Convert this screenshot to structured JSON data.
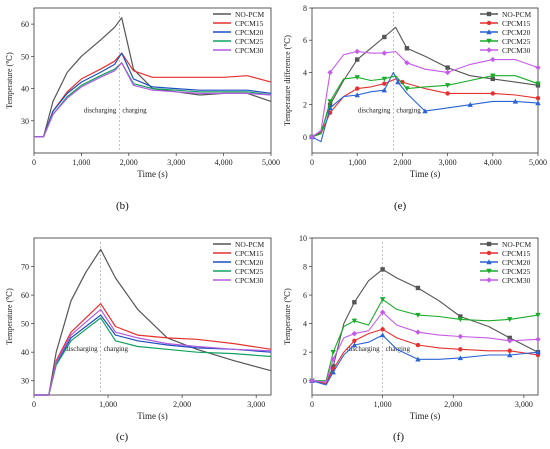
{
  "figure": {
    "panel_labels": [
      "(b)",
      "(e)",
      "(c)",
      "(f)"
    ],
    "annotations": {
      "left": "discharging",
      "right": "charging"
    }
  },
  "colors": {
    "NO-PCM": "#555555",
    "CPCM15": "#e5312f",
    "CPCM20": "#1f4fbf",
    "CPCM25": "#10a060",
    "CPCM30": "#b05be0",
    "e_CPCM20": "#2a63d6",
    "e_CPCM25": "#1aab2a",
    "e_CPCM30": "#c55be8",
    "f_CPCM20": "#2a63d6",
    "f_CPCM25": "#1aab2a",
    "f_CPCM30": "#c55be8"
  },
  "chart_data": [
    {
      "id": "b",
      "type": "line",
      "xlabel": "Time (s)",
      "ylabel": "Temperature (℃)",
      "xlim": [
        0,
        5000
      ],
      "ylim": [
        20,
        65
      ],
      "xticks": [
        0,
        1000,
        2000,
        3000,
        4000,
        5000
      ],
      "xticklabels": [
        "0",
        "1,000",
        "2,000",
        "3,000",
        "4,000",
        "5,000"
      ],
      "yticks": [
        30,
        40,
        50,
        60
      ],
      "yticklabels": [
        "30",
        "40",
        "50",
        "60"
      ],
      "divider_x": 1800,
      "legend": "top-right",
      "series": [
        {
          "name": "NO-PCM",
          "x": [
            0,
            200,
            400,
            700,
            1000,
            1400,
            1700,
            1850,
            2100,
            2500,
            3000,
            3500,
            4000,
            4500,
            5000
          ],
          "values": [
            25,
            25,
            36,
            45,
            50,
            55,
            59,
            62,
            46,
            40,
            39,
            38,
            38.5,
            38.5,
            36
          ]
        },
        {
          "name": "CPCM15",
          "x": [
            0,
            200,
            400,
            700,
            1000,
            1400,
            1700,
            1850,
            2100,
            2500,
            3000,
            3500,
            4000,
            4500,
            5000
          ],
          "values": [
            25,
            25,
            33,
            39,
            43,
            46,
            48.5,
            51,
            45.5,
            43.5,
            43.5,
            43.5,
            43.5,
            44,
            42
          ]
        },
        {
          "name": "CPCM20",
          "x": [
            0,
            200,
            400,
            700,
            1000,
            1400,
            1700,
            1850,
            2100,
            2500,
            3000,
            3500,
            4000,
            4500,
            5000
          ],
          "values": [
            25,
            25,
            33,
            38.5,
            42,
            45,
            47.5,
            51,
            43,
            40.5,
            40,
            39.5,
            39.5,
            39.5,
            38.5
          ]
        },
        {
          "name": "CPCM25",
          "x": [
            0,
            200,
            400,
            700,
            1000,
            1400,
            1700,
            1850,
            2100,
            2500,
            3000,
            3500,
            4000,
            4500,
            5000
          ],
          "values": [
            25,
            25,
            32,
            37.5,
            41,
            44,
            46,
            48,
            41.5,
            40,
            39.5,
            39,
            39,
            39,
            38
          ]
        },
        {
          "name": "CPCM30",
          "x": [
            0,
            200,
            400,
            700,
            1000,
            1400,
            1700,
            1850,
            2100,
            2500,
            3000,
            3500,
            4000,
            4500,
            5000
          ],
          "values": [
            25,
            25,
            32,
            37,
            40.5,
            43.5,
            45.5,
            48,
            41,
            39.5,
            39,
            38.5,
            38.5,
            38.5,
            38
          ]
        }
      ]
    },
    {
      "id": "e",
      "type": "line",
      "xlabel": "Time (s)",
      "ylabel": "Temperature difference (℃)",
      "xlim": [
        0,
        5000
      ],
      "ylim": [
        -1,
        8
      ],
      "xticks": [
        0,
        1000,
        2000,
        3000,
        4000,
        5000
      ],
      "xticklabels": [
        "0",
        "1,000",
        "2,000",
        "3,000",
        "4,000",
        "5,000"
      ],
      "yticks": [
        0,
        2,
        4,
        6,
        8
      ],
      "yticklabels": [
        "0",
        "2",
        "4",
        "6",
        "8"
      ],
      "divider_x": 1800,
      "legend": "top-right",
      "series": [
        {
          "name": "NO-PCM",
          "x": [
            0,
            200,
            400,
            700,
            1000,
            1300,
            1600,
            1850,
            2100,
            2500,
            3000,
            3500,
            4000,
            4500,
            5000
          ],
          "values": [
            0,
            0.3,
            2.0,
            3.5,
            4.8,
            5.5,
            6.2,
            6.8,
            5.5,
            5.0,
            4.3,
            3.8,
            3.6,
            3.4,
            3.2
          ]
        },
        {
          "name": "CPCM15",
          "x": [
            0,
            200,
            400,
            700,
            1000,
            1300,
            1600,
            1850,
            2000,
            2500,
            3000,
            3500,
            4000,
            4500,
            5000
          ],
          "values": [
            0,
            0.2,
            1.5,
            2.5,
            3.0,
            3.1,
            3.3,
            3.6,
            3.4,
            3.0,
            2.7,
            2.7,
            2.7,
            2.6,
            2.4
          ]
        },
        {
          "name": "CPCM20",
          "x": [
            0,
            200,
            400,
            700,
            1000,
            1300,
            1600,
            1800,
            1900,
            2100,
            2500,
            3000,
            3500,
            4000,
            4500,
            5000
          ],
          "values": [
            0,
            -0.3,
            1.8,
            2.5,
            2.6,
            2.8,
            2.9,
            4.0,
            3.4,
            2.7,
            1.6,
            1.8,
            2.0,
            2.2,
            2.2,
            2.1
          ]
        },
        {
          "name": "CPCM25",
          "x": [
            0,
            200,
            400,
            700,
            1000,
            1300,
            1600,
            1850,
            2100,
            2500,
            3000,
            3500,
            4000,
            4500,
            5000
          ],
          "values": [
            0,
            0.2,
            2.2,
            3.6,
            3.7,
            3.5,
            3.6,
            3.8,
            3.0,
            3.1,
            3.2,
            3.5,
            3.8,
            3.8,
            3.3
          ]
        },
        {
          "name": "CPCM30",
          "x": [
            0,
            200,
            400,
            700,
            1000,
            1300,
            1600,
            1850,
            2100,
            2500,
            3000,
            3500,
            4000,
            4500,
            5000
          ],
          "values": [
            0,
            0.4,
            4.0,
            5.1,
            5.3,
            5.2,
            5.2,
            5.3,
            4.6,
            4.2,
            4.0,
            4.5,
            4.8,
            4.8,
            4.3
          ]
        }
      ]
    },
    {
      "id": "c",
      "type": "line",
      "xlabel": "Time (s)",
      "ylabel": "Temperature (℃)",
      "xlim": [
        0,
        3200
      ],
      "ylim": [
        25,
        80
      ],
      "xticks": [
        0,
        1000,
        2000,
        3000
      ],
      "xticklabels": [
        "0",
        "1,000",
        "2,000",
        "3,000"
      ],
      "yticks": [
        30,
        40,
        50,
        60,
        70
      ],
      "yticklabels": [
        "30",
        "40",
        "50",
        "60",
        "70"
      ],
      "divider_x": 900,
      "legend": "top-right",
      "series": [
        {
          "name": "NO-PCM",
          "x": [
            0,
            200,
            300,
            500,
            700,
            900,
            1100,
            1400,
            1800,
            2200,
            2700,
            3200
          ],
          "values": [
            25,
            25,
            40,
            58,
            68,
            76,
            66,
            55,
            45,
            41,
            37,
            33.5
          ]
        },
        {
          "name": "CPCM15",
          "x": [
            0,
            200,
            300,
            500,
            700,
            900,
            1100,
            1400,
            1800,
            2200,
            2700,
            3200
          ],
          "values": [
            25,
            25,
            37,
            47,
            52,
            57,
            49,
            46,
            45,
            44.5,
            43,
            41
          ]
        },
        {
          "name": "CPCM20",
          "x": [
            0,
            200,
            300,
            500,
            700,
            900,
            1100,
            1400,
            1800,
            2200,
            2700,
            3200
          ],
          "values": [
            25,
            25,
            36,
            45,
            49,
            53,
            46,
            44,
            42.5,
            41.5,
            41,
            40
          ]
        },
        {
          "name": "CPCM25",
          "x": [
            0,
            200,
            300,
            500,
            700,
            900,
            1100,
            1400,
            1800,
            2200,
            2700,
            3200
          ],
          "values": [
            25,
            25,
            35.5,
            44,
            48,
            52,
            44,
            42,
            41,
            40,
            39.5,
            38.5
          ]
        },
        {
          "name": "CPCM30",
          "x": [
            0,
            200,
            300,
            500,
            700,
            900,
            1100,
            1400,
            1800,
            2200,
            2700,
            3200
          ],
          "values": [
            25,
            25,
            36.5,
            46,
            50.5,
            55,
            47,
            45,
            43,
            42,
            41,
            40.5
          ]
        }
      ]
    },
    {
      "id": "f",
      "type": "line",
      "xlabel": "Time (s)",
      "ylabel": "Temperature (℃)",
      "xlim": [
        0,
        3200
      ],
      "ylim": [
        -1,
        10
      ],
      "xticks": [
        0,
        1000,
        2000,
        3000
      ],
      "xticklabels": [
        "0",
        "1,000",
        "2,000",
        "3,000"
      ],
      "yticks": [
        0,
        2,
        4,
        6,
        8,
        10
      ],
      "yticklabels": [
        "0",
        "2",
        "4",
        "6",
        "8",
        "10"
      ],
      "divider_x": 1000,
      "legend": "top-right",
      "series": [
        {
          "name": "NO-PCM",
          "x": [
            0,
            200,
            300,
            450,
            600,
            800,
            1000,
            1200,
            1500,
            1800,
            2100,
            2500,
            2800,
            3200
          ],
          "values": [
            0,
            -0.2,
            1.0,
            4.0,
            5.5,
            7.0,
            7.8,
            7.2,
            6.5,
            5.6,
            4.5,
            3.8,
            3.0,
            2.0
          ]
        },
        {
          "name": "CPCM15",
          "x": [
            0,
            200,
            300,
            450,
            600,
            800,
            1000,
            1200,
            1500,
            1800,
            2100,
            2500,
            2800,
            3200
          ],
          "values": [
            0,
            -0.2,
            0.8,
            2.0,
            2.8,
            3.3,
            3.6,
            3.0,
            2.5,
            2.3,
            2.2,
            2.1,
            2.1,
            1.8
          ]
        },
        {
          "name": "CPCM20",
          "x": [
            0,
            200,
            300,
            450,
            600,
            800,
            1000,
            1200,
            1500,
            1800,
            2100,
            2500,
            2800,
            3200
          ],
          "values": [
            0,
            -0.3,
            0.6,
            1.8,
            2.5,
            2.7,
            3.2,
            2.2,
            1.5,
            1.5,
            1.6,
            1.8,
            1.8,
            2.0
          ]
        },
        {
          "name": "CPCM25",
          "x": [
            0,
            200,
            300,
            450,
            600,
            800,
            1000,
            1200,
            1500,
            1800,
            2100,
            2500,
            2800,
            3200
          ],
          "values": [
            0,
            0,
            2.0,
            3.8,
            4.2,
            3.9,
            5.7,
            5.0,
            4.6,
            4.5,
            4.3,
            4.2,
            4.3,
            4.6
          ]
        },
        {
          "name": "CPCM30",
          "x": [
            0,
            200,
            300,
            450,
            600,
            800,
            1000,
            1200,
            1500,
            1800,
            2100,
            2500,
            2800,
            3200
          ],
          "values": [
            0,
            -0.1,
            1.5,
            3.0,
            3.3,
            3.5,
            4.8,
            3.9,
            3.4,
            3.2,
            3.1,
            3.0,
            2.8,
            2.9
          ]
        }
      ]
    }
  ]
}
